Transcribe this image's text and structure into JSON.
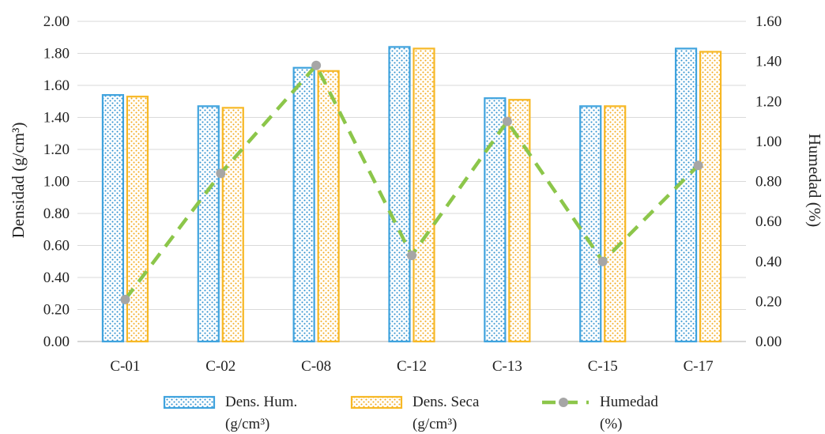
{
  "chart_data": {
    "type": "bar",
    "categories": [
      "C-01",
      "C-02",
      "C-08",
      "C-12",
      "C-13",
      "C-15",
      "C-17"
    ],
    "series": [
      {
        "name": "Dens. Hum. (g/cm³)",
        "legend_lines": [
          "Dens. Hum.",
          "(g/cm³)"
        ],
        "kind": "bar",
        "axis": "left",
        "color": "#3fa3de",
        "dot_color": "#2e90cf",
        "values": [
          1.54,
          1.47,
          1.71,
          1.84,
          1.52,
          1.47,
          1.83
        ]
      },
      {
        "name": "Dens. Seca (g/cm³)",
        "legend_lines": [
          "Dens. Seca",
          "(g/cm³)"
        ],
        "kind": "bar",
        "axis": "left",
        "color": "#f7b825",
        "dot_color": "#f2a91a",
        "values": [
          1.53,
          1.46,
          1.69,
          1.83,
          1.51,
          1.47,
          1.81
        ]
      },
      {
        "name": "Humedad (%)",
        "legend_lines": [
          "Humedad",
          "(%)"
        ],
        "kind": "line",
        "axis": "right",
        "color": "#8cc64a",
        "marker_color": "#a6a6a6",
        "values": [
          0.21,
          0.84,
          1.38,
          0.43,
          1.1,
          0.4,
          0.88
        ]
      }
    ],
    "ylabel": "Densidad (g/cm³)",
    "y2label": "Humedad (%)",
    "ylim": [
      0,
      2.0
    ],
    "y2lim": [
      0,
      1.6
    ],
    "yticks": [
      "0.00",
      "0.20",
      "0.40",
      "0.60",
      "0.80",
      "1.00",
      "1.20",
      "1.40",
      "1.60",
      "1.80",
      "2.00"
    ],
    "y2ticks": [
      "0.00",
      "0.20",
      "0.40",
      "0.60",
      "0.80",
      "1.00",
      "1.20",
      "1.40",
      "1.60"
    ],
    "grid": true,
    "legend_position": "bottom"
  }
}
